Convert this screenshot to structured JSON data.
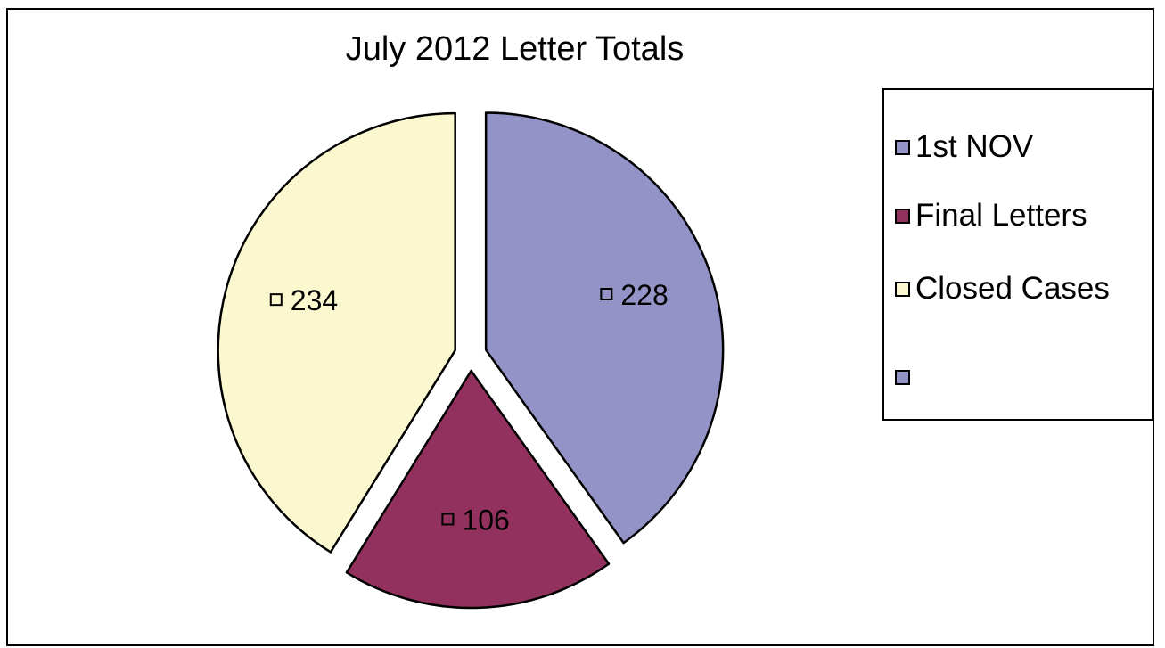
{
  "chart_data": {
    "type": "pie",
    "title": "July 2012 Letter Totals",
    "slices": [
      {
        "label": "1st NOV",
        "value": 228,
        "color": "#9393c8"
      },
      {
        "label": "Final Letters",
        "value": 106,
        "color": "#93315e"
      },
      {
        "label": "Closed Cases",
        "value": 234,
        "color": "#fbf8cf"
      }
    ],
    "legend": {
      "placement": "right",
      "entries": [
        {
          "label": "1st NOV",
          "color": "#9393c8"
        },
        {
          "label": "Final Letters",
          "color": "#93315e"
        },
        {
          "label": "Closed Cases",
          "color": "#fbf8cf"
        },
        {
          "label": "",
          "color": "#9393c8"
        }
      ]
    },
    "exploded": true,
    "data_labels": true
  }
}
